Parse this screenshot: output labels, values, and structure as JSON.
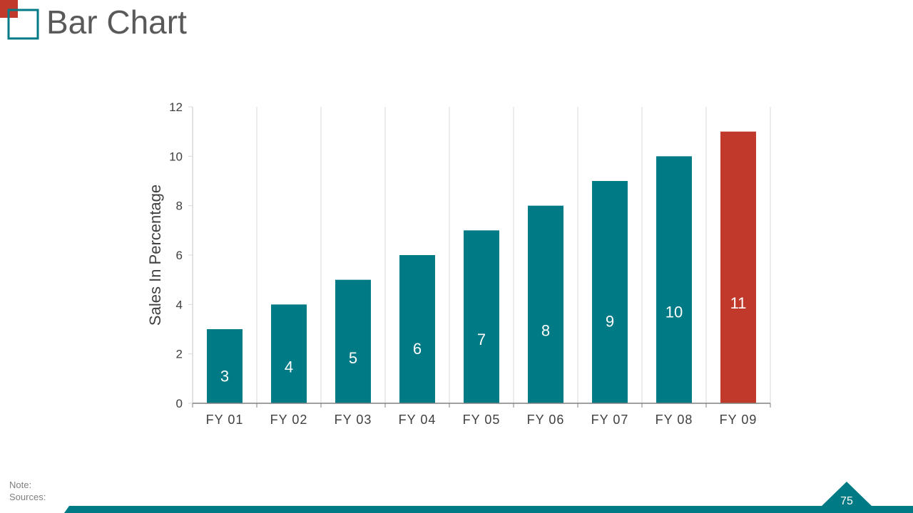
{
  "page": {
    "title": "Bar Chart",
    "note_label": "Note:",
    "sources_label": "Sources:",
    "page_number": "75"
  },
  "colors": {
    "teal": "#007A85",
    "red": "#C0392B",
    "title_text": "#595959",
    "grid": "#D9D9D9"
  },
  "chart_data": {
    "type": "bar",
    "categories": [
      "FY 01",
      "FY 02",
      "FY 03",
      "FY 04",
      "FY 05",
      "FY 06",
      "FY 07",
      "FY 08",
      "FY 09"
    ],
    "values": [
      3,
      4,
      5,
      6,
      7,
      8,
      9,
      10,
      11
    ],
    "data_labels": [
      "3",
      "4",
      "5",
      "6",
      "7",
      "8",
      "9",
      "10",
      "11"
    ],
    "bar_colors": [
      "#007A85",
      "#007A85",
      "#007A85",
      "#007A85",
      "#007A85",
      "#007A85",
      "#007A85",
      "#007A85",
      "#C0392B"
    ],
    "title": "",
    "xlabel": "",
    "ylabel": "Sales In Percentage",
    "ylim": [
      0,
      12
    ],
    "yticks": [
      0,
      2,
      4,
      6,
      8,
      10,
      12
    ],
    "ytick_labels": [
      "0",
      "2",
      "4",
      "6",
      "8",
      "10",
      "12"
    ],
    "grid": "vertical",
    "legend": "none"
  }
}
